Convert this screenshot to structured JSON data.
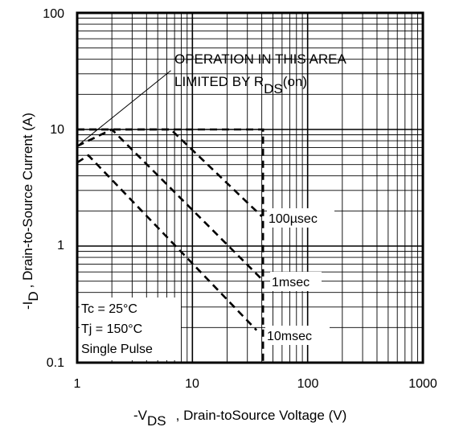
{
  "chart_data": {
    "type": "line",
    "xscale": "log",
    "yscale": "log",
    "xlim": [
      1,
      1000
    ],
    "ylim": [
      0.1,
      100
    ],
    "grid": true,
    "xticks": [
      "1",
      "10",
      "100",
      "1000"
    ],
    "yticks": [
      "0.1",
      "1",
      "10",
      "100"
    ],
    "xlabel": {
      "prefix": "-V",
      "sub": "DS",
      "rest": ", Drain-toSource Voltage (V)"
    },
    "ylabel": {
      "prefix": "-I",
      "sub": "D",
      "rest": ", Drain-to-Source Current (A)"
    },
    "annotation": {
      "line1": "OPERATION IN THIS AREA",
      "line2_prefix": "LIMITED BY R",
      "line2_sub": "DS",
      "line2_rest": "(on)"
    },
    "conditions": [
      "Tc = 25°C",
      "Tj = 150°C",
      "Single Pulse"
    ],
    "series": [
      {
        "name": "100µsec",
        "points": [
          [
            1,
            10
          ],
          [
            6.5,
            10
          ],
          [
            40,
            1.8
          ]
        ]
      },
      {
        "name": "1msec",
        "points": [
          [
            1,
            7.2
          ],
          [
            2,
            10
          ],
          [
            40,
            0.52
          ]
        ]
      },
      {
        "name": "10msec",
        "points": [
          [
            1,
            5.2
          ],
          [
            1.25,
            6.0
          ],
          [
            36,
            0.19
          ]
        ]
      },
      {
        "name": "",
        "points": [
          [
            1,
            10
          ],
          [
            41,
            10
          ],
          [
            41,
            0.1
          ]
        ]
      }
    ],
    "rds_line": [
      [
        1.05,
        7.5
      ],
      [
        6.5,
        32
      ]
    ]
  }
}
